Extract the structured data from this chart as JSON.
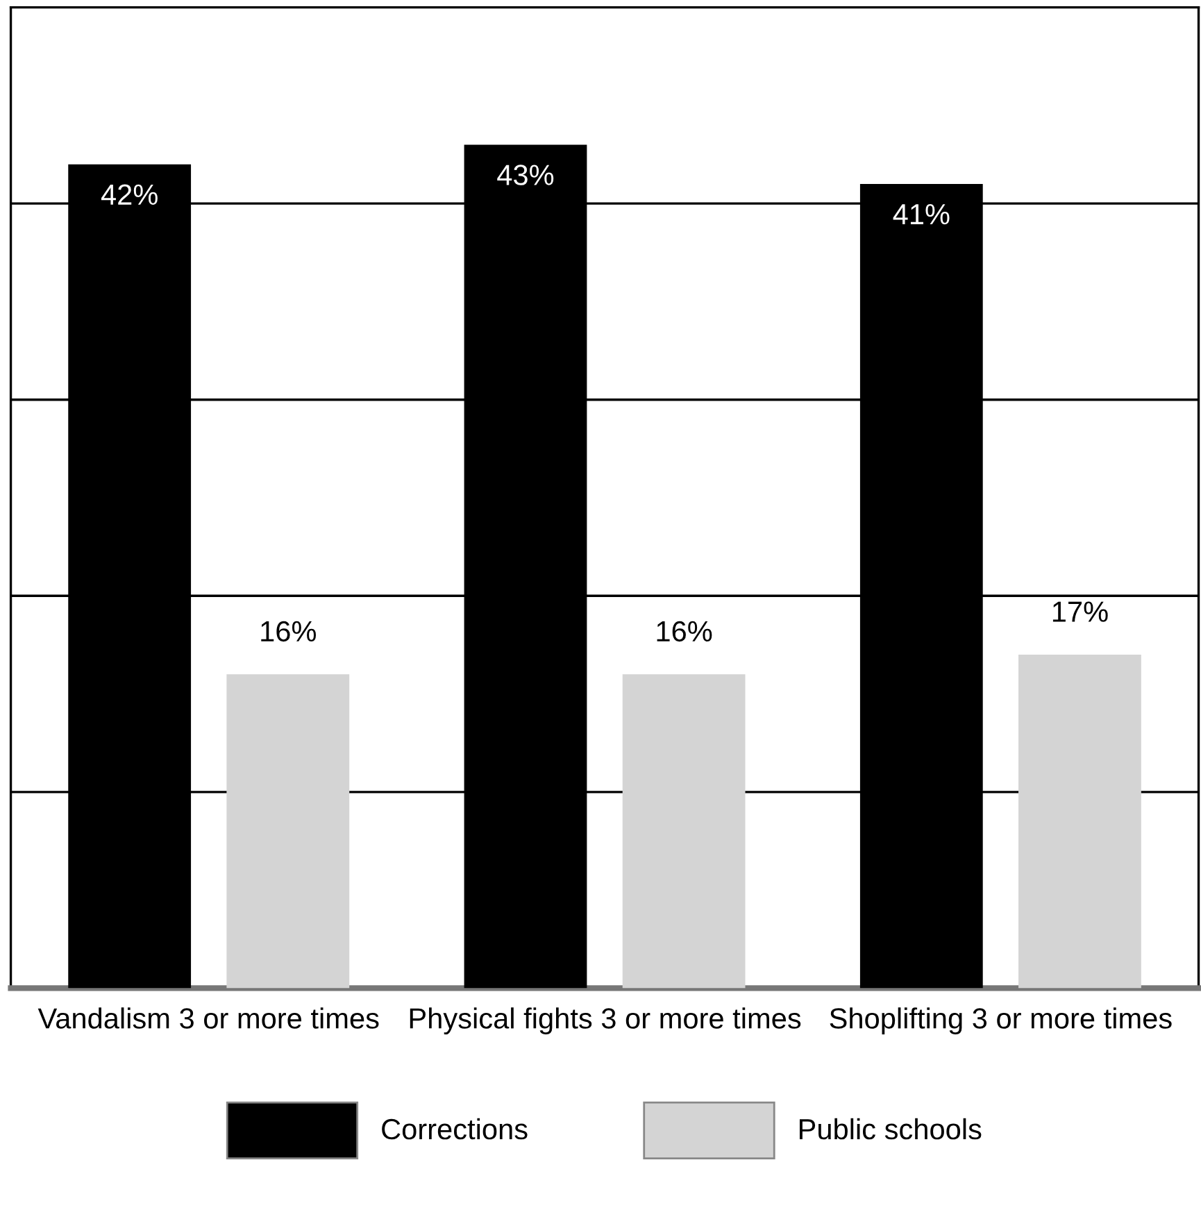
{
  "chart_data": {
    "type": "bar",
    "categories": [
      "Vandalism 3 or more times",
      "Physical fights 3 or more times",
      "Shoplifting 3 or more times"
    ],
    "series": [
      {
        "name": "Corrections",
        "color": "#000000",
        "values": [
          42,
          43,
          41
        ],
        "value_labels": [
          "42%",
          "43%",
          "41%"
        ]
      },
      {
        "name": "Public schools",
        "color": "#d4d4d4",
        "values": [
          16,
          16,
          17
        ],
        "value_labels": [
          "16%",
          "16%",
          "17%"
        ]
      }
    ],
    "ylim": [
      0,
      50
    ],
    "yticks": [
      {
        "value": 10,
        "label": null
      },
      {
        "value": 20,
        "label": null
      },
      {
        "value": 30,
        "label": null
      },
      {
        "value": 40,
        "label": null
      }
    ],
    "tick_labels": "x",
    "grid": "y",
    "legend": "bottom"
  }
}
